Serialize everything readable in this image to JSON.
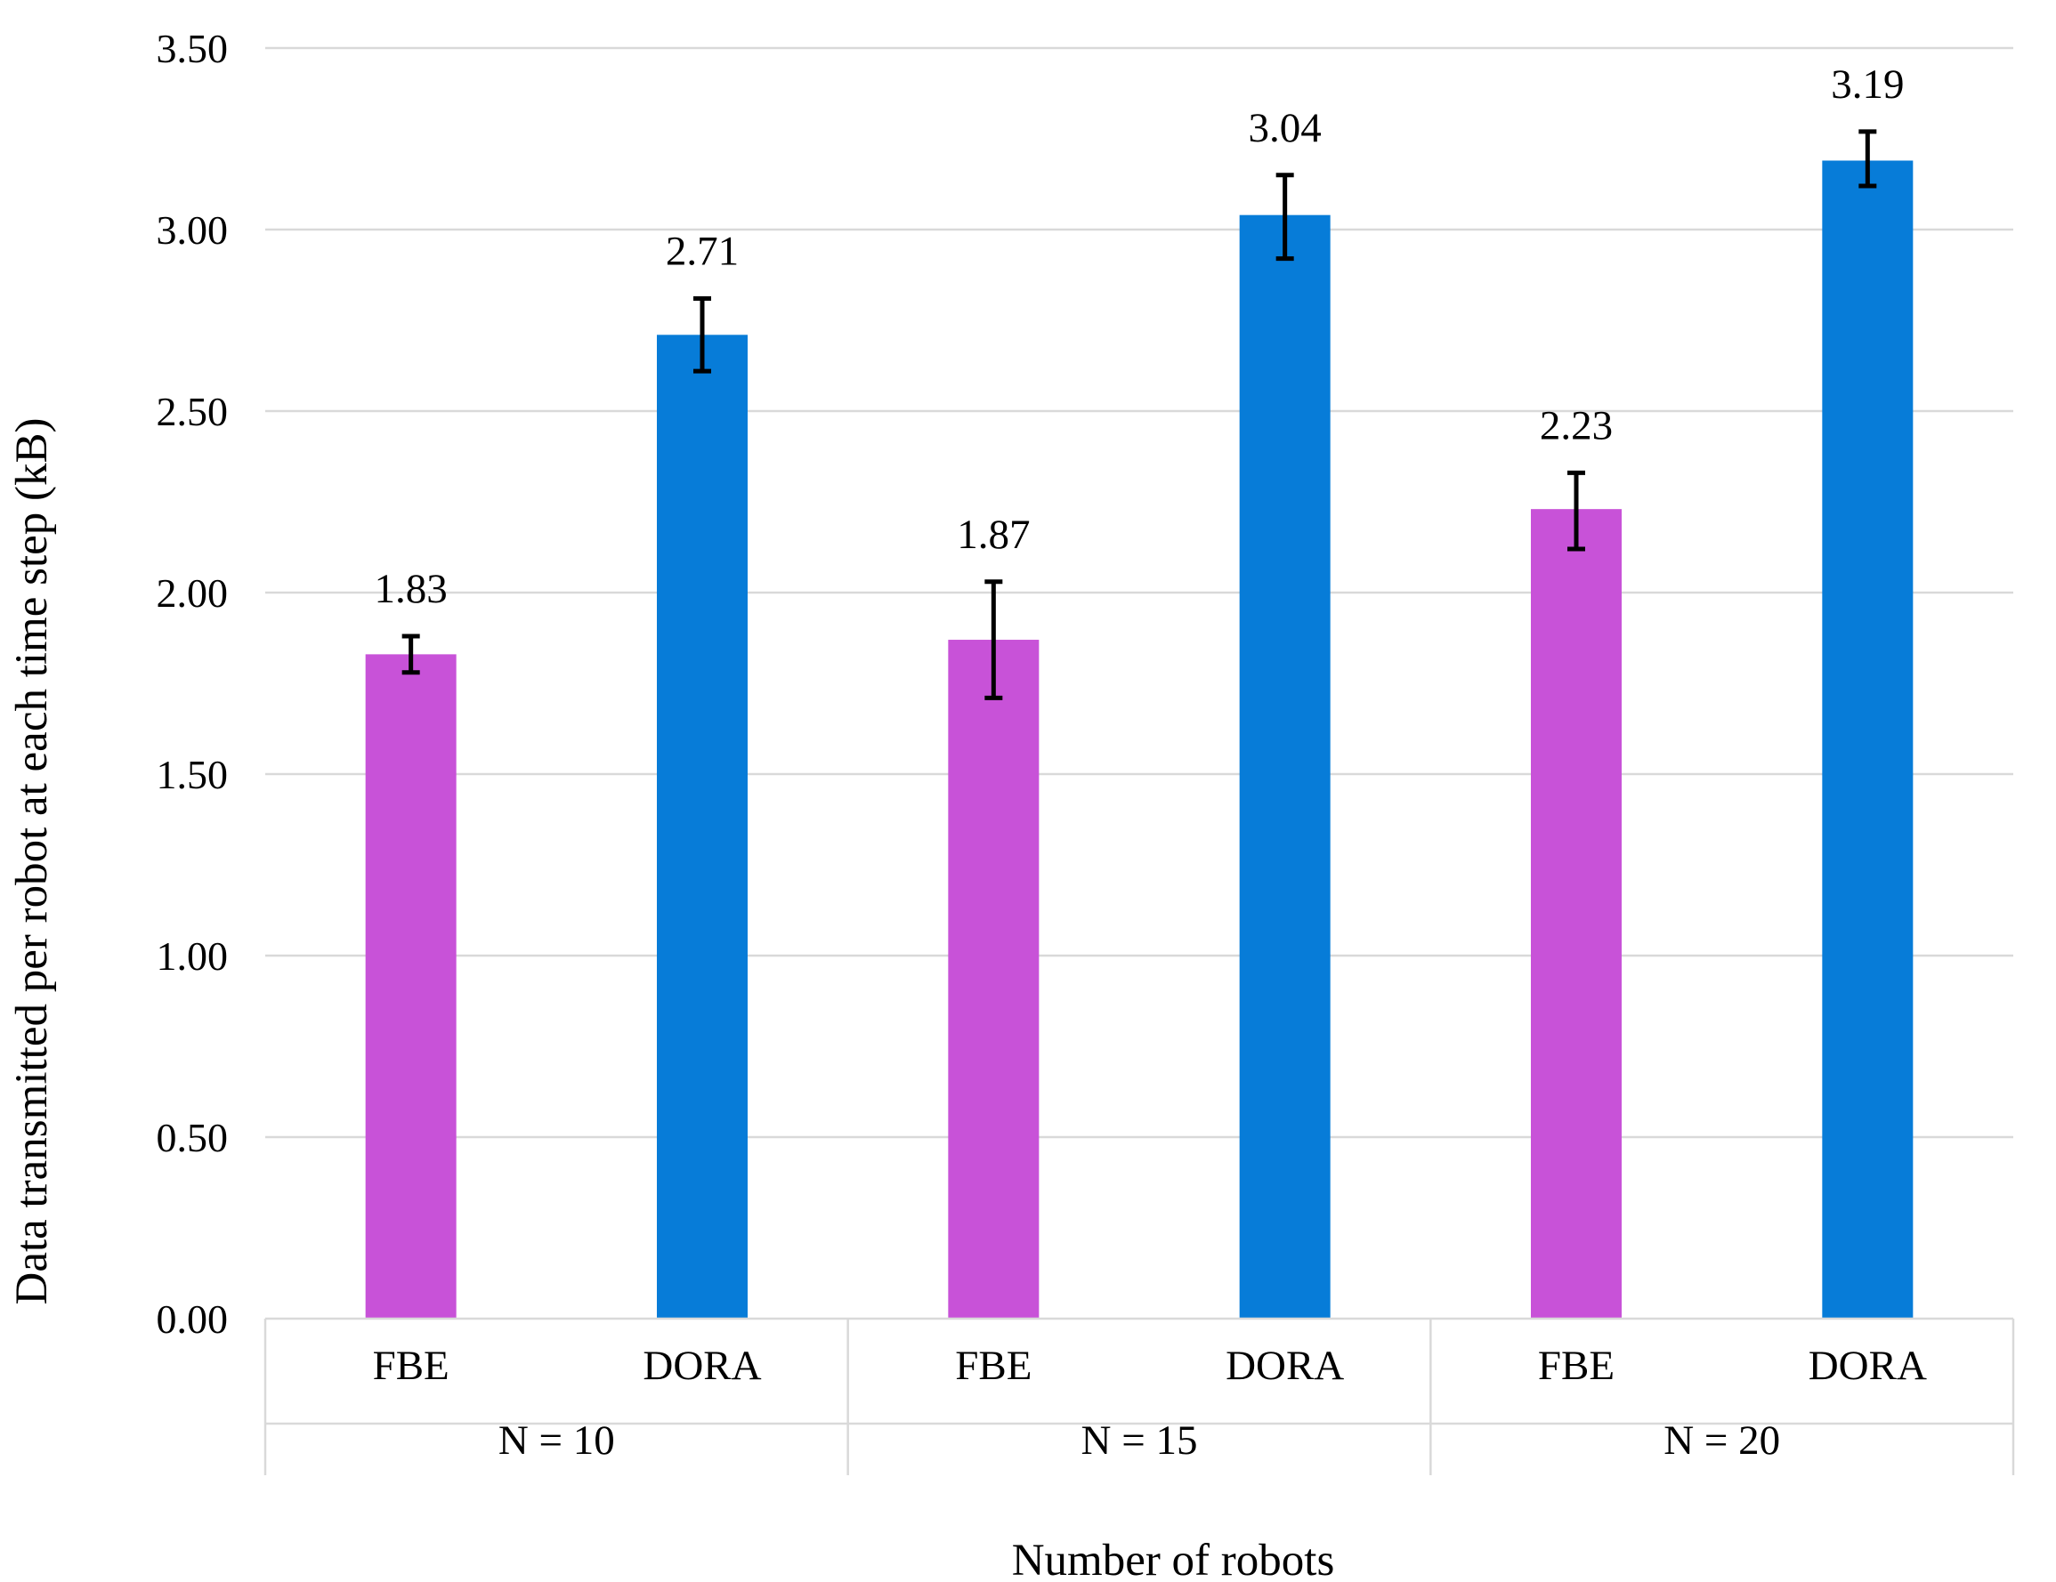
{
  "chart_data": {
    "type": "bar",
    "title": "",
    "ylabel": "Data transmitted per robot at each time step (kB)",
    "xlabel": "Number of robots",
    "ylim": [
      0,
      3.5
    ],
    "yticks": [
      0,
      0.5,
      1.0,
      1.5,
      2.0,
      2.5,
      3.0,
      3.5
    ],
    "ytick_labels": [
      "0.00",
      "0.50",
      "1.00",
      "1.50",
      "2.00",
      "2.50",
      "3.00",
      "3.50"
    ],
    "grid": true,
    "legend": "none",
    "groups": [
      {
        "label": "N = 10",
        "bars": [
          {
            "category": "FBE",
            "value": 1.83,
            "value_label": "1.83",
            "err_low": 1.78,
            "err_high": 1.88,
            "color": "#c852d8"
          },
          {
            "category": "DORA",
            "value": 2.71,
            "value_label": "2.71",
            "err_low": 2.61,
            "err_high": 2.81,
            "color": "#077cd8"
          }
        ]
      },
      {
        "label": "N = 15",
        "bars": [
          {
            "category": "FBE",
            "value": 1.87,
            "value_label": "1.87",
            "err_low": 1.71,
            "err_high": 2.03,
            "color": "#c852d8"
          },
          {
            "category": "DORA",
            "value": 3.04,
            "value_label": "3.04",
            "err_low": 2.92,
            "err_high": 3.15,
            "color": "#077cd8"
          }
        ]
      },
      {
        "label": "N = 20",
        "bars": [
          {
            "category": "FBE",
            "value": 2.23,
            "value_label": "2.23",
            "err_low": 2.12,
            "err_high": 2.33,
            "color": "#c852d8"
          },
          {
            "category": "DORA",
            "value": 3.19,
            "value_label": "3.19",
            "err_low": 3.12,
            "err_high": 3.27,
            "color": "#077cd8"
          }
        ]
      }
    ]
  }
}
